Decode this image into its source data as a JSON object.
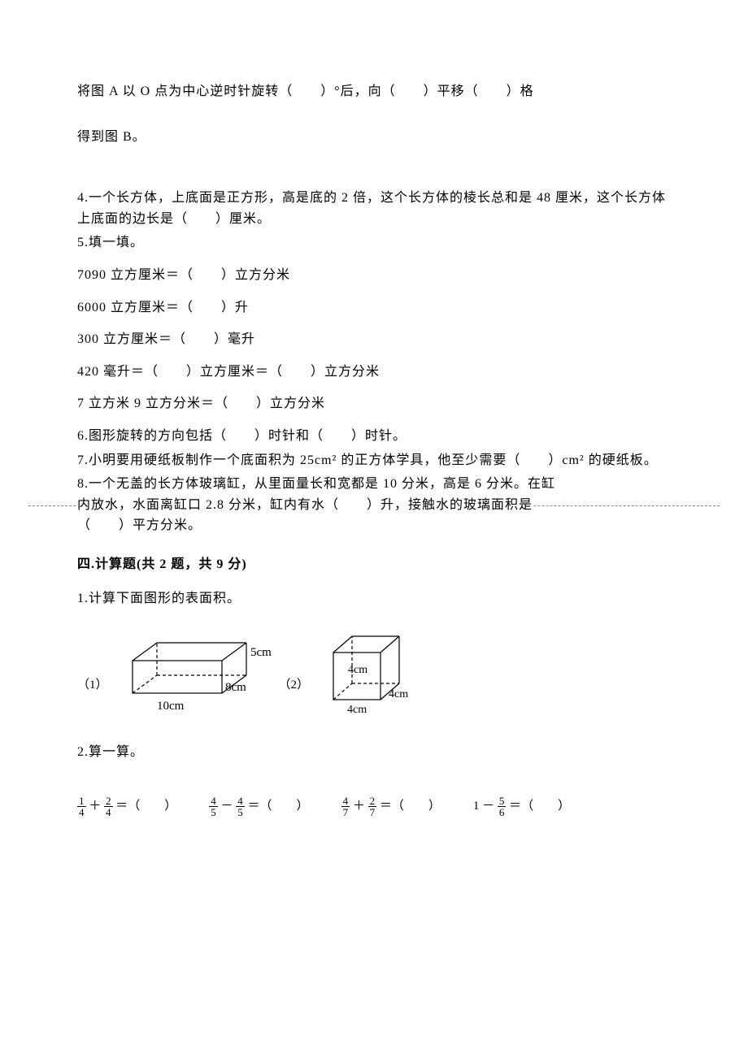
{
  "q3_line1": "将图 A 以 O 点为中心逆时针旋转（　　）°后，向（　　）平移（　　）格",
  "q3_line2": "得到图 B。",
  "q4": "4.一个长方体，上底面是正方形，高是底的 2 倍，这个长方体的棱长总和是 48 厘米，这个长方体上底面的边长是（　　）厘米。",
  "q5_title": "5.填一填。",
  "q5_items": [
    "7090 立方厘米＝（　　）立方分米",
    "6000 立方厘米＝（　　）升",
    "300 立方厘米＝（　　）毫升",
    "420 毫升＝（　　）立方厘米＝（　　）立方分米",
    "7 立方米 9 立方分米＝（　　）立方分米"
  ],
  "q6": "6.图形旋转的方向包括（　　）时针和（　　）时针。",
  "q7": "7.小明要用硬纸板制作一个底面积为 25cm² 的正方体学具，他至少需要（　　）cm² 的硬纸板。",
  "q8_a": "8.一个无盖的长方体玻璃缸，从里面量长和宽都是 10 分米，高是 6 分米。在缸",
  "q8_b": "内放水，水面离缸口 2.8 分米，缸内有水（　　）升，接触水的玻璃面积是",
  "q8_c": "（　　）平方分米。",
  "section4_title": "四.计算题(共 2 题，共 9 分)",
  "calc_q1": "1.计算下面图形的表面积。",
  "fig1_label": "（1）",
  "fig2_label": "（2）",
  "cuboid": {
    "length_label": "10cm",
    "width_label": "8cm",
    "height_label": "5cm",
    "stroke": "#000000",
    "dash": "4,3",
    "fontsize": 15
  },
  "cube": {
    "length_label": "4cm",
    "width_label": "4cm",
    "height_label": "4cm",
    "stroke": "#000000",
    "dash": "4,3",
    "fontsize": 14
  },
  "calc_q2": "2.算一算。",
  "fraction_items": [
    {
      "a_num": "1",
      "a_den": "4",
      "op": "＋",
      "b_num": "2",
      "b_den": "4"
    },
    {
      "a_num": "4",
      "a_den": "5",
      "op": "－",
      "b_num": "4",
      "b_den": "5"
    },
    {
      "a_num": "4",
      "a_den": "7",
      "op": "＋",
      "b_num": "2",
      "b_den": "7"
    },
    {
      "whole": "1",
      "op": "－",
      "b_num": "5",
      "b_den": "6"
    }
  ],
  "blank_suffix": " ＝（　　）"
}
